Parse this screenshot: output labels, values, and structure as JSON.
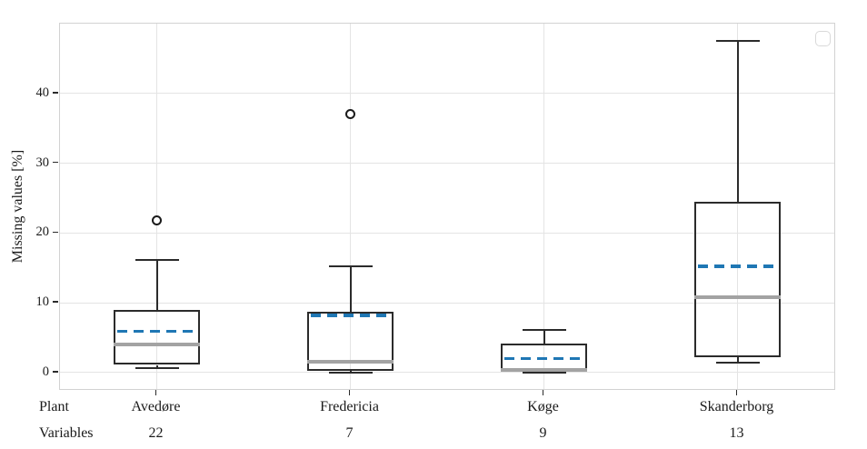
{
  "chart_data": {
    "type": "boxplot",
    "title": "",
    "ylabel": "Missing values [%]",
    "yticks": [
      0,
      10,
      20,
      30,
      40
    ],
    "ylim": [
      -2.35,
      50.0
    ],
    "grid": true,
    "legend": {
      "visible": true,
      "position": "top-right",
      "entries": []
    },
    "row_labels": [
      "Plant",
      "Variables"
    ],
    "categories": [
      "Avedøre",
      "Fredericia",
      "Køge",
      "Skanderborg"
    ],
    "series": [
      {
        "plant": "Avedøre",
        "variables": "22",
        "whisker_low": 0.6,
        "q1": 1.1,
        "median": 4.0,
        "mean": 5.9,
        "q3": 9.0,
        "whisker_high": 16.1,
        "outliers": [
          21.8
        ]
      },
      {
        "plant": "Fredericia",
        "variables": "7",
        "whisker_low": 0.0,
        "q1": 0.3,
        "median": 1.5,
        "mean": 8.2,
        "q3": 8.7,
        "whisker_high": 15.2,
        "outliers": [
          37.0
        ]
      },
      {
        "plant": "Køge",
        "variables": "9",
        "whisker_low": 0.0,
        "q1": 0.2,
        "median": 0.4,
        "mean": 2.0,
        "q3": 4.2,
        "whisker_high": 6.1,
        "outliers": []
      },
      {
        "plant": "Skanderborg",
        "variables": "13",
        "whisker_low": 1.4,
        "q1": 2.2,
        "median": 10.8,
        "mean": 15.2,
        "q3": 24.5,
        "whisker_high": 47.5,
        "outliers": []
      }
    ],
    "colors": {
      "box_edge": "#2b2b2b",
      "median": "#a3a3a3",
      "mean": "#1f77b4",
      "grid": "#e4e4e4",
      "frame": "#d2d2d2",
      "tick": "#2b2b2b",
      "text": "#1a1a1a",
      "background": "#ffffff"
    }
  }
}
